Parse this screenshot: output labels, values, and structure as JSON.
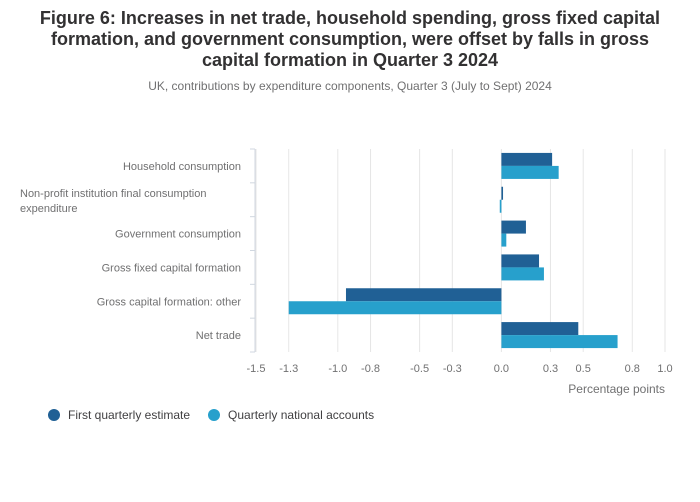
{
  "title": "Figure 6: Increases in net trade, household spending, gross fixed capital\nformation, and government consumption, were offset by falls in gross\ncapital formation in Quarter 3 2024",
  "subtitle": "UK, contributions by expenditure components, Quarter 3 (July to Sept) 2024",
  "colors": {
    "series1": "#206095",
    "series2": "#27a0cc",
    "grid": "#e6e6e6",
    "axis": "#d0d7e0"
  },
  "chart_data": {
    "type": "bar",
    "orientation": "horizontal",
    "categories": [
      "Household consumption",
      "Non-profit institution final consumption expenditure",
      "Government consumption",
      "Gross fixed capital formation",
      "Gross capital formation: other",
      "Net trade"
    ],
    "category_lines": [
      [
        "Household consumption"
      ],
      [
        "Non-profit institution final consumption",
        "expenditure"
      ],
      [
        "Government consumption"
      ],
      [
        "Gross fixed capital formation"
      ],
      [
        "Gross capital formation: other"
      ],
      [
        "Net trade"
      ]
    ],
    "series": [
      {
        "name": "First quarterly estimate",
        "values": [
          0.31,
          0.01,
          0.15,
          0.23,
          -0.95,
          0.47
        ]
      },
      {
        "name": "Quarterly national accounts",
        "values": [
          0.35,
          -0.01,
          0.03,
          0.26,
          -1.3,
          0.71
        ]
      }
    ],
    "xlabel": "Percentage points",
    "ylabel": "",
    "xlim": [
      -1.5,
      1.0
    ],
    "xticks": [
      -1.5,
      -1.3,
      -1.0,
      -0.8,
      -0.5,
      -0.3,
      0.0,
      0.3,
      0.5,
      0.8,
      1.0
    ],
    "xtick_labels": [
      "-1.5",
      "-1.3",
      "-1.0",
      "-0.8",
      "-0.5",
      "-0.3",
      "0.0",
      "0.3",
      "0.5",
      "0.8",
      "1.0"
    ],
    "grid": true,
    "legend_position": "bottom-left"
  }
}
